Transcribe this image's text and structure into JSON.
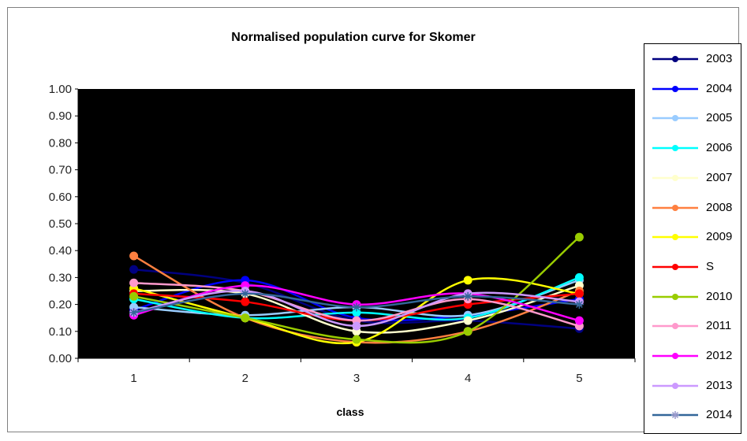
{
  "chart_data": {
    "type": "line",
    "title": "Normalised population curve for Skomer",
    "xlabel": "class",
    "ylabel": "",
    "categories": [
      "1",
      "2",
      "3",
      "4",
      "5"
    ],
    "ylim": [
      0,
      1
    ],
    "yticks": [
      "0.00",
      "0.10",
      "0.20",
      "0.30",
      "0.40",
      "0.50",
      "0.60",
      "0.70",
      "0.80",
      "0.90",
      "1.00"
    ],
    "plot_background": "#000000",
    "smooth": true,
    "legend_position": "right",
    "series": [
      {
        "name": "2003",
        "color": "#000080",
        "marker": "dot",
        "values": [
          0.33,
          0.28,
          0.14,
          0.14,
          0.11
        ]
      },
      {
        "name": "2004",
        "color": "#0000ff",
        "marker": "dot",
        "values": [
          0.18,
          0.29,
          0.15,
          0.16,
          0.22
        ]
      },
      {
        "name": "2005",
        "color": "#99ccff",
        "marker": "dot",
        "values": [
          0.19,
          0.16,
          0.19,
          0.16,
          0.29
        ]
      },
      {
        "name": "2006",
        "color": "#00ffff",
        "marker": "dot",
        "values": [
          0.22,
          0.15,
          0.17,
          0.15,
          0.3
        ]
      },
      {
        "name": "2007",
        "color": "#ffffcc",
        "marker": "dot",
        "values": [
          0.25,
          0.24,
          0.1,
          0.14,
          0.27
        ]
      },
      {
        "name": "2008",
        "color": "#ff8040",
        "marker": "dot",
        "values": [
          0.38,
          0.15,
          0.06,
          0.1,
          0.25
        ]
      },
      {
        "name": "2009",
        "color": "#ffff00",
        "marker": "dot",
        "values": [
          0.26,
          0.15,
          0.06,
          0.29,
          0.24
        ]
      },
      {
        "name": "S",
        "color": "#ff0000",
        "marker": "dot",
        "values": [
          0.24,
          0.21,
          0.14,
          0.2,
          0.24
        ]
      },
      {
        "name": "2010",
        "color": "#99cc00",
        "marker": "dot",
        "values": [
          0.23,
          0.15,
          0.07,
          0.1,
          0.45
        ]
      },
      {
        "name": "2011",
        "color": "#ff99cc",
        "marker": "dot",
        "values": [
          0.28,
          0.25,
          0.14,
          0.22,
          0.12
        ]
      },
      {
        "name": "2012",
        "color": "#ff00ff",
        "marker": "dot",
        "values": [
          0.16,
          0.27,
          0.2,
          0.24,
          0.14
        ]
      },
      {
        "name": "2013",
        "color": "#cc99ff",
        "marker": "dot",
        "values": [
          0.17,
          0.25,
          0.12,
          0.24,
          0.21
        ]
      },
      {
        "name": "2014",
        "color": "#336699",
        "marker": "star",
        "values": [
          0.17,
          0.24,
          0.19,
          0.23,
          0.2
        ]
      }
    ]
  }
}
